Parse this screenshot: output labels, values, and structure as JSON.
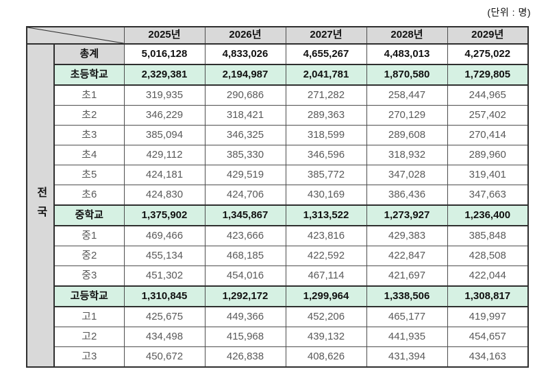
{
  "unit_label": "(단위 : 명)",
  "region": {
    "label": "전국"
  },
  "colors": {
    "header_bg": "#d9d9d9",
    "section_bg": "#d6f1e3",
    "border": "#2e2e2e",
    "grade_text": "#595959"
  },
  "table": {
    "years": [
      "2025년",
      "2026년",
      "2027년",
      "2028년",
      "2029년"
    ],
    "rows": [
      {
        "key": "total",
        "type": "total",
        "label": "총계",
        "values": [
          "5,016,128",
          "4,833,026",
          "4,655,267",
          "4,483,013",
          "4,275,022"
        ]
      },
      {
        "key": "elementary",
        "type": "section",
        "label": "초등학교",
        "values": [
          "2,329,381",
          "2,194,987",
          "2,041,781",
          "1,870,580",
          "1,729,805"
        ]
      },
      {
        "key": "e1",
        "type": "grade",
        "label": "초1",
        "values": [
          "319,935",
          "290,686",
          "271,282",
          "258,447",
          "244,965"
        ]
      },
      {
        "key": "e2",
        "type": "grade",
        "label": "초2",
        "values": [
          "346,229",
          "318,421",
          "289,363",
          "270,129",
          "257,402"
        ]
      },
      {
        "key": "e3",
        "type": "grade",
        "label": "초3",
        "values": [
          "385,094",
          "346,325",
          "318,599",
          "289,608",
          "270,414"
        ]
      },
      {
        "key": "e4",
        "type": "grade",
        "label": "초4",
        "values": [
          "429,112",
          "385,330",
          "346,596",
          "318,932",
          "289,960"
        ]
      },
      {
        "key": "e5",
        "type": "grade",
        "label": "초5",
        "values": [
          "424,181",
          "429,519",
          "385,772",
          "347,028",
          "319,401"
        ]
      },
      {
        "key": "e6",
        "type": "grade",
        "label": "초6",
        "values": [
          "424,830",
          "424,706",
          "430,169",
          "386,436",
          "347,663"
        ]
      },
      {
        "key": "middle",
        "type": "section",
        "label": "중학교",
        "values": [
          "1,375,902",
          "1,345,867",
          "1,313,522",
          "1,273,927",
          "1,236,400"
        ]
      },
      {
        "key": "m1",
        "type": "grade",
        "label": "중1",
        "values": [
          "469,466",
          "423,666",
          "423,816",
          "429,383",
          "385,848"
        ]
      },
      {
        "key": "m2",
        "type": "grade",
        "label": "중2",
        "values": [
          "455,134",
          "468,185",
          "422,592",
          "422,847",
          "428,508"
        ]
      },
      {
        "key": "m3",
        "type": "grade",
        "label": "중3",
        "values": [
          "451,302",
          "454,016",
          "467,114",
          "421,697",
          "422,044"
        ]
      },
      {
        "key": "high",
        "type": "section",
        "label": "고등학교",
        "values": [
          "1,310,845",
          "1,292,172",
          "1,299,964",
          "1,338,506",
          "1,308,817"
        ]
      },
      {
        "key": "h1",
        "type": "grade",
        "label": "고1",
        "values": [
          "425,675",
          "449,366",
          "452,206",
          "465,177",
          "419,997"
        ]
      },
      {
        "key": "h2",
        "type": "grade",
        "label": "고2",
        "values": [
          "434,498",
          "415,968",
          "439,132",
          "441,935",
          "454,657"
        ]
      },
      {
        "key": "h3",
        "type": "grade",
        "label": "고3",
        "values": [
          "450,672",
          "426,838",
          "408,626",
          "431,394",
          "434,163"
        ]
      }
    ]
  }
}
